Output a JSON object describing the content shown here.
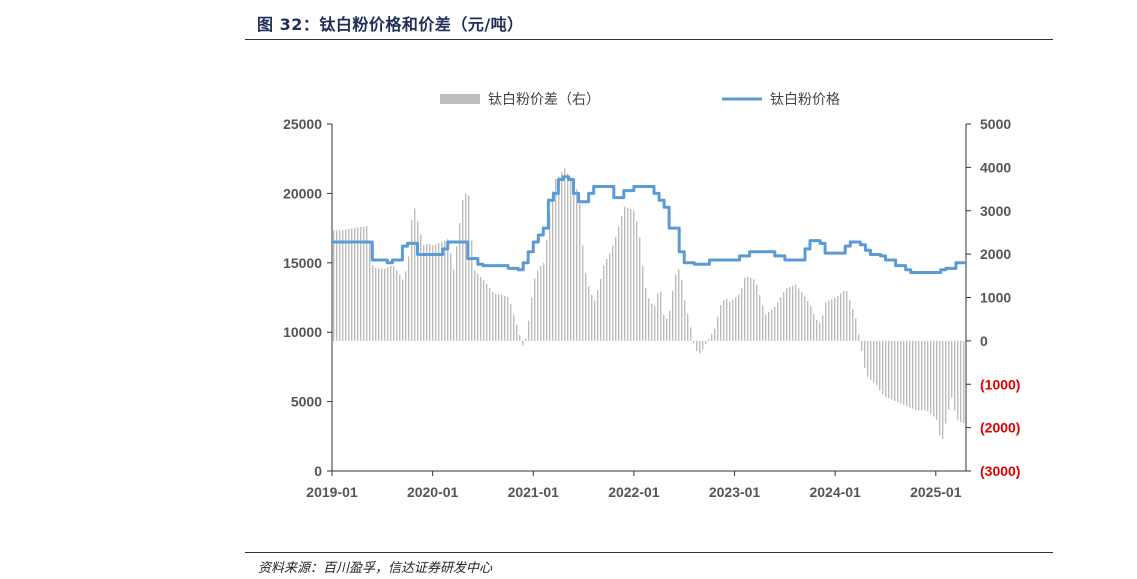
{
  "header": {
    "title": "图 32：钛白粉价格和价差（元/吨）"
  },
  "footer": {
    "source": "资料来源：百川盈孚，信达证券研发中心"
  },
  "chart_data": {
    "type": "bar+line",
    "x_ticks": [
      "2019-01",
      "2020-01",
      "2021-01",
      "2022-01",
      "2023-01",
      "2024-01",
      "2025-01"
    ],
    "y_left": {
      "ticks": [
        "0",
        "5000",
        "10000",
        "15000",
        "20000",
        "25000"
      ],
      "lim": [
        0,
        25000
      ]
    },
    "y_right": {
      "ticks": [
        "(3000)",
        "(2000)",
        "(1000)",
        "0",
        "1000",
        "2000",
        "3000",
        "4000",
        "5000"
      ],
      "lim": [
        -3000,
        5000
      ],
      "negative_tick_color": "#e00000"
    },
    "legend": {
      "position": "top",
      "bar_label": "钛白粉价差（右）",
      "line_label": "钛白粉价格"
    },
    "colors": {
      "bar": "#bdbdbd",
      "line": "#5b9bd5"
    },
    "series": [
      {
        "name": "钛白粉价差（右）",
        "axis": "right",
        "kind": "bar",
        "x": [
          2019.0,
          2019.1,
          2019.2,
          2019.35,
          2019.4,
          2019.5,
          2019.6,
          2019.7,
          2019.75,
          2019.8,
          2019.9,
          2019.95,
          2020.0,
          2020.1,
          2020.15,
          2020.2,
          2020.3,
          2020.35,
          2020.4,
          2020.5,
          2020.6,
          2020.7,
          2020.75,
          2020.8,
          2020.9,
          2020.95,
          2021.0,
          2021.05,
          2021.1,
          2021.15,
          2021.2,
          2021.25,
          2021.3,
          2021.35,
          2021.4,
          2021.45,
          2021.5,
          2021.55,
          2021.6,
          2021.65,
          2021.7,
          2021.75,
          2021.8,
          2021.85,
          2021.9,
          2022.0,
          2022.05,
          2022.1,
          2022.15,
          2022.2,
          2022.25,
          2022.3,
          2022.35,
          2022.4,
          2022.45,
          2022.5,
          2022.55,
          2022.6,
          2022.65,
          2022.7,
          2022.75,
          2022.8,
          2022.85,
          2022.9,
          2022.95,
          2023.0,
          2023.05,
          2023.1,
          2023.2,
          2023.3,
          2023.4,
          2023.5,
          2023.6,
          2023.7,
          2023.75,
          2023.8,
          2023.85,
          2023.9,
          2024.0,
          2024.1,
          2024.2,
          2024.3,
          2024.4,
          2024.45,
          2024.5,
          2024.6,
          2024.7,
          2024.8,
          2024.9,
          2025.0,
          2025.05,
          2025.1,
          2025.15,
          2025.2,
          2025.25,
          2025.3
        ],
        "values": [
          2550,
          2550,
          2600,
          2650,
          1700,
          1650,
          1750,
          1400,
          1800,
          3200,
          2200,
          2250,
          2200,
          2300,
          2350,
          1600,
          3400,
          3400,
          1650,
          1400,
          1100,
          1050,
          1000,
          600,
          -200,
          500,
          1400,
          1700,
          1800,
          2800,
          3700,
          3800,
          4000,
          3800,
          3700,
          3300,
          1700,
          1200,
          900,
          1300,
          1800,
          2000,
          2300,
          2700,
          3100,
          3000,
          2400,
          1300,
          900,
          800,
          1300,
          400,
          700,
          1500,
          1700,
          900,
          400,
          -200,
          -300,
          -100,
          100,
          300,
          800,
          1000,
          900,
          1000,
          1100,
          1500,
          1400,
          600,
          800,
          1200,
          1300,
          1000,
          800,
          500,
          400,
          900,
          1000,
          1200,
          500,
          -800,
          -1000,
          -1200,
          -1300,
          -1400,
          -1500,
          -1600,
          -1600,
          -1800,
          -2400,
          -1800,
          -1300,
          -1800,
          -1900,
          -1900
        ]
      },
      {
        "name": "钛白粉价格",
        "axis": "left",
        "kind": "line",
        "x": [
          2019.0,
          2019.35,
          2019.4,
          2019.55,
          2019.6,
          2019.7,
          2019.75,
          2019.85,
          2019.95,
          2020.1,
          2020.15,
          2020.3,
          2020.35,
          2020.45,
          2020.5,
          2020.7,
          2020.75,
          2020.85,
          2020.9,
          2020.95,
          2021.0,
          2021.05,
          2021.1,
          2021.15,
          2021.2,
          2021.25,
          2021.3,
          2021.35,
          2021.4,
          2021.45,
          2021.5,
          2021.55,
          2021.6,
          2021.7,
          2021.8,
          2021.85,
          2021.9,
          2022.0,
          2022.1,
          2022.2,
          2022.25,
          2022.3,
          2022.35,
          2022.45,
          2022.5,
          2022.55,
          2022.6,
          2022.7,
          2022.75,
          2023.0,
          2023.05,
          2023.15,
          2023.2,
          2023.3,
          2023.4,
          2023.5,
          2023.6,
          2023.7,
          2023.75,
          2023.85,
          2023.9,
          2024.0,
          2024.05,
          2024.1,
          2024.15,
          2024.2,
          2024.25,
          2024.3,
          2024.35,
          2024.4,
          2024.45,
          2024.5,
          2024.6,
          2024.7,
          2024.75,
          2024.8,
          2024.9,
          2025.0,
          2025.05,
          2025.1,
          2025.2,
          2025.25,
          2025.3
        ],
        "values": [
          16500,
          16500,
          15200,
          15000,
          15200,
          16200,
          16400,
          15600,
          15600,
          16000,
          16500,
          16500,
          15300,
          14900,
          14800,
          14800,
          14600,
          14500,
          15000,
          15800,
          16500,
          17000,
          17500,
          19500,
          20000,
          21000,
          21200,
          21000,
          20000,
          19400,
          19400,
          20000,
          20500,
          20500,
          19700,
          19700,
          20200,
          20500,
          20500,
          20000,
          19500,
          19000,
          17500,
          15800,
          15000,
          15000,
          14900,
          14900,
          15200,
          15200,
          15500,
          15800,
          15800,
          15800,
          15500,
          15200,
          15200,
          16000,
          16600,
          16400,
          15700,
          15700,
          15700,
          16200,
          16500,
          16500,
          16300,
          15900,
          15600,
          15600,
          15500,
          15200,
          14800,
          14500,
          14300,
          14300,
          14300,
          14300,
          14500,
          14600,
          15000,
          15000,
          15000
        ]
      }
    ]
  }
}
